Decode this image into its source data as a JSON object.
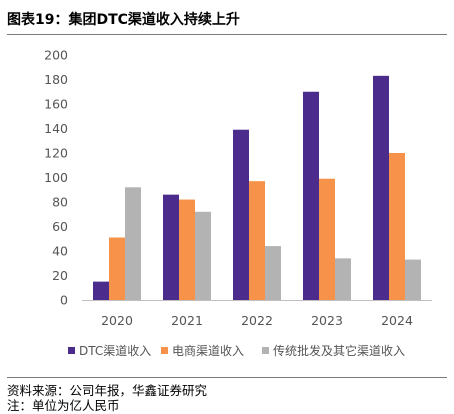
{
  "figure_title": "图表19：集团DTC渠道收入持续上升",
  "source_note": "资料来源：公司年报，华鑫证券研究",
  "unit_note": "注：单位为亿人民币",
  "colors": {
    "dtc": "#4b2c8c",
    "ecommerce": "#f7924a",
    "traditional": "#b3b3b3",
    "axis_text": "#555555"
  },
  "chart_data": {
    "type": "bar",
    "categories": [
      "2020",
      "2021",
      "2022",
      "2023",
      "2024"
    ],
    "series": [
      {
        "name": "DTC渠道收入",
        "values": [
          15,
          86,
          139,
          170,
          183
        ],
        "color": "#4b2c8c"
      },
      {
        "name": "电商渠道收入",
        "values": [
          51,
          82,
          97,
          99,
          120
        ],
        "color": "#f7924a"
      },
      {
        "name": "传统批发及其它渠道收入",
        "values": [
          92,
          72,
          44,
          34,
          33
        ],
        "color": "#b3b3b3"
      }
    ],
    "ylim": [
      0,
      200
    ],
    "yticks": [
      0,
      20,
      40,
      60,
      80,
      100,
      120,
      140,
      160,
      180,
      200
    ],
    "xlabel": "",
    "ylabel": "",
    "grid": false,
    "legend_position": "bottom"
  }
}
